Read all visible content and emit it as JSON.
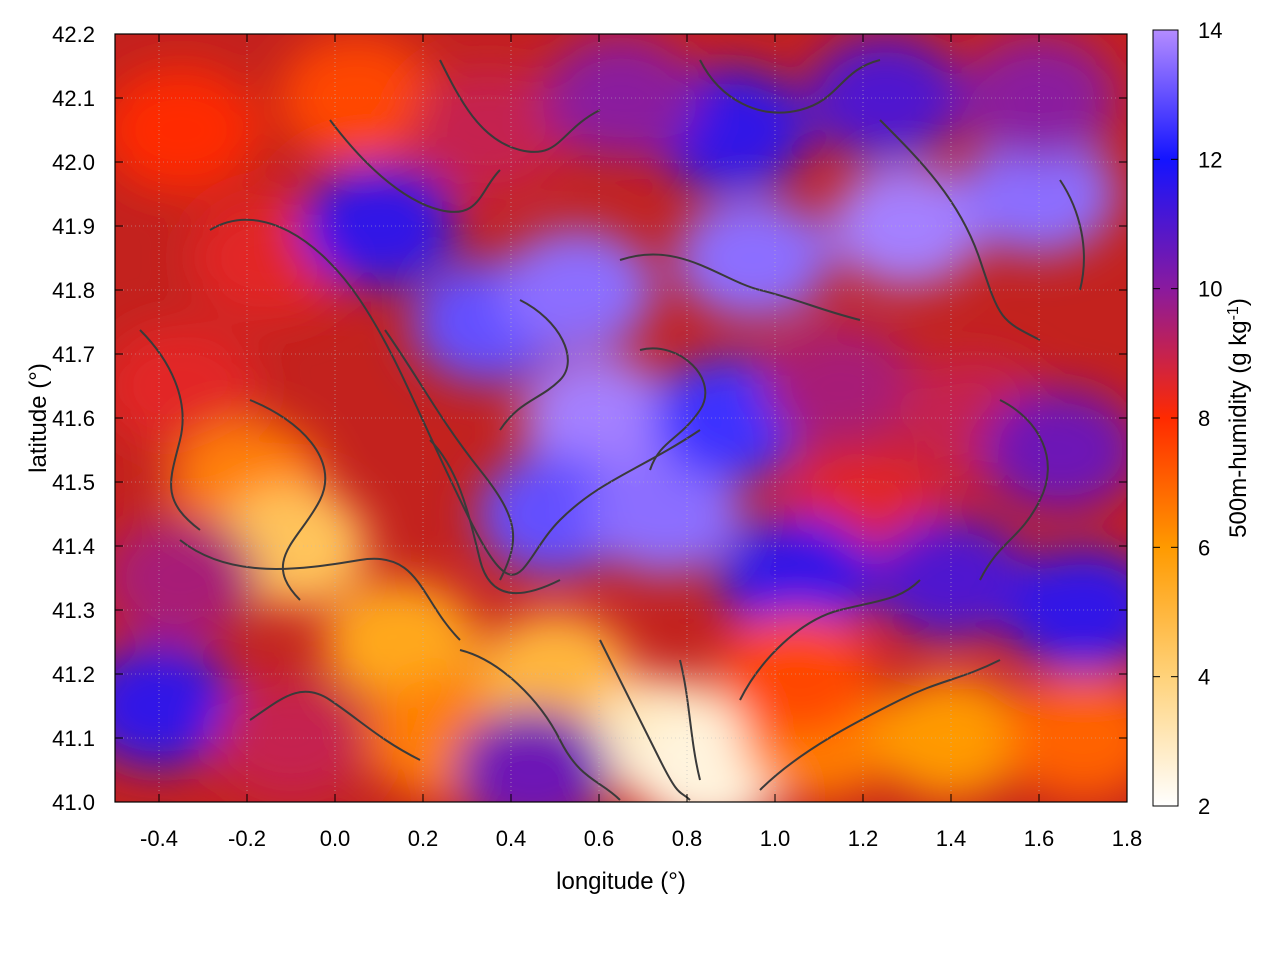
{
  "chart_data": {
    "type": "heatmap",
    "title": "",
    "xlabel": "longitude (°)",
    "ylabel": "latitude (°)",
    "xlim": [
      -0.5,
      1.8
    ],
    "ylim": [
      41.0,
      42.2
    ],
    "xticks": [
      -0.4,
      -0.2,
      0.0,
      0.2,
      0.4,
      0.6,
      0.8,
      1.0,
      1.2,
      1.4,
      1.6,
      1.8
    ],
    "xtick_labels": [
      "-0.4",
      "-0.2",
      "0.0",
      "0.2",
      "0.4",
      "0.6",
      "0.8",
      "1.0",
      "1.2",
      "1.4",
      "1.6",
      "1.8"
    ],
    "yticks": [
      41.0,
      41.1,
      41.2,
      41.3,
      41.4,
      41.5,
      41.6,
      41.7,
      41.8,
      41.9,
      42.0,
      42.1,
      42.2
    ],
    "ytick_labels": [
      "41.0",
      "41.1",
      "41.2",
      "41.3",
      "41.4",
      "41.5",
      "41.6",
      "41.7",
      "41.8",
      "41.9",
      "42.0",
      "42.1",
      "42.2"
    ],
    "colorbar": {
      "label_main": "500m-humidity (g kg",
      "label_sup": "-1",
      "label_end": ")",
      "range": [
        2,
        14
      ],
      "ticks": [
        2,
        4,
        6,
        8,
        10,
        12,
        14
      ],
      "tick_labels": [
        "2",
        "4",
        "6",
        "8",
        "10",
        "12",
        "14"
      ],
      "colors": [
        "#ffffff",
        "#ffd27a",
        "#ff9a00",
        "#ff2a00",
        "#8a1a9e",
        "#1414ff",
        "#b48cff"
      ]
    },
    "grid": true,
    "contours": true,
    "humidity_blobs": [
      {
        "lon": -0.35,
        "lat": 42.05,
        "value": 8.0
      },
      {
        "lon": -0.15,
        "lat": 41.85,
        "value": 8.5
      },
      {
        "lon": 0.05,
        "lat": 42.1,
        "value": 7.5
      },
      {
        "lon": 0.35,
        "lat": 42.05,
        "value": 9.0
      },
      {
        "lon": 0.1,
        "lat": 41.9,
        "value": 11.5
      },
      {
        "lon": 0.35,
        "lat": 41.75,
        "value": 13.0
      },
      {
        "lon": 0.55,
        "lat": 41.8,
        "value": 13.5
      },
      {
        "lon": 0.6,
        "lat": 41.6,
        "value": 13.8
      },
      {
        "lon": 0.5,
        "lat": 41.45,
        "value": 13.0
      },
      {
        "lon": 0.75,
        "lat": 41.45,
        "value": 13.5
      },
      {
        "lon": 0.9,
        "lat": 41.6,
        "value": 12.5
      },
      {
        "lon": 0.95,
        "lat": 41.85,
        "value": 13.5
      },
      {
        "lon": 1.3,
        "lat": 41.9,
        "value": 13.8
      },
      {
        "lon": 1.6,
        "lat": 41.95,
        "value": 13.5
      },
      {
        "lon": 1.15,
        "lat": 41.65,
        "value": 9.5
      },
      {
        "lon": 1.45,
        "lat": 41.6,
        "value": 9.0
      },
      {
        "lon": 1.65,
        "lat": 41.55,
        "value": 10.5
      },
      {
        "lon": 1.2,
        "lat": 41.45,
        "value": 8.5
      },
      {
        "lon": 1.05,
        "lat": 41.35,
        "value": 11.5
      },
      {
        "lon": 1.4,
        "lat": 41.35,
        "value": 11.0
      },
      {
        "lon": 1.7,
        "lat": 41.3,
        "value": 11.5
      },
      {
        "lon": -0.35,
        "lat": 41.65,
        "value": 8.5
      },
      {
        "lon": -0.2,
        "lat": 41.5,
        "value": 6.5
      },
      {
        "lon": -0.1,
        "lat": 41.4,
        "value": 4.5
      },
      {
        "lon": -0.35,
        "lat": 41.35,
        "value": 9.5
      },
      {
        "lon": -0.4,
        "lat": 41.15,
        "value": 11.5
      },
      {
        "lon": -0.1,
        "lat": 41.1,
        "value": 9.0
      },
      {
        "lon": 0.15,
        "lat": 41.25,
        "value": 5.5
      },
      {
        "lon": 0.25,
        "lat": 41.1,
        "value": 6.5
      },
      {
        "lon": 0.5,
        "lat": 41.2,
        "value": 5.0
      },
      {
        "lon": 0.75,
        "lat": 41.1,
        "value": 3.0
      },
      {
        "lon": 0.85,
        "lat": 41.05,
        "value": 2.5
      },
      {
        "lon": 1.1,
        "lat": 41.1,
        "value": 6.5
      },
      {
        "lon": 1.4,
        "lat": 41.1,
        "value": 6.0
      },
      {
        "lon": 1.7,
        "lat": 41.1,
        "value": 7.0
      },
      {
        "lon": 1.05,
        "lat": 41.2,
        "value": 7.5
      },
      {
        "lon": 0.45,
        "lat": 41.05,
        "value": 10.5
      },
      {
        "lon": 0.9,
        "lat": 42.05,
        "value": 11.5
      },
      {
        "lon": 0.65,
        "lat": 42.1,
        "value": 10.0
      },
      {
        "lon": 1.25,
        "lat": 42.1,
        "value": 11.0
      },
      {
        "lon": 1.6,
        "lat": 42.1,
        "value": 10.0
      }
    ]
  }
}
